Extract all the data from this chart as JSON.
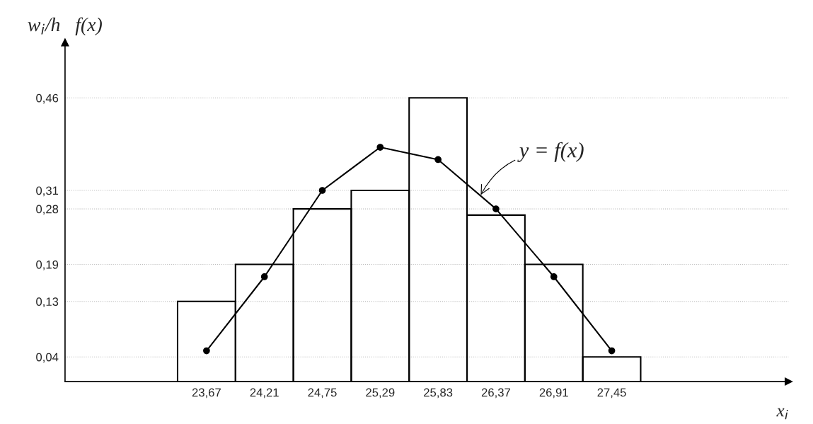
{
  "chart_data": {
    "type": "histogram",
    "ylabel": "w$_{i}$/h   f(x)",
    "xlabel": "x$_{i}$",
    "bins": [
      23.4,
      23.94,
      24.48,
      25.02,
      25.56,
      26.1,
      26.64,
      27.18,
      27.72
    ],
    "values": [
      0.13,
      0.19,
      0.28,
      0.31,
      0.46,
      0.27,
      0.19,
      0.04
    ],
    "color": "#000000",
    "series": [
      {
        "type": "line",
        "x": [
          23.67,
          24.21,
          24.75,
          25.29,
          25.83,
          26.37,
          26.91,
          27.45
        ],
        "values": [
          0.05,
          0.17,
          0.31,
          0.38,
          0.36,
          0.28,
          0.17,
          0.05
        ],
        "color": "#000000"
      }
    ],
    "marker": "circle",
    "line_style": "solid",
    "grid": "y",
    "xlim": [
      22.35,
      29.1
    ],
    "ylim": [
      0,
      0.55
    ],
    "xticks": [
      {
        "value": 23.67,
        "label": "23,67"
      },
      {
        "value": 24.21,
        "label": "24,21"
      },
      {
        "value": 24.75,
        "label": "24,75"
      },
      {
        "value": 25.29,
        "label": "25,29"
      },
      {
        "value": 25.83,
        "label": "25,83"
      },
      {
        "value": 26.37,
        "label": "26,37"
      },
      {
        "value": 26.91,
        "label": "26,91"
      },
      {
        "value": 27.45,
        "label": "27,45"
      }
    ],
    "yticks": [
      {
        "value": 0.04,
        "label": "0,04"
      },
      {
        "value": 0.13,
        "label": "0,13"
      },
      {
        "value": 0.19,
        "label": "0,19"
      },
      {
        "value": 0.28,
        "label": "0,28"
      },
      {
        "value": 0.31,
        "label": "0,31"
      },
      {
        "value": 0.46,
        "label": "0,46"
      }
    ],
    "annotations": [
      {
        "text": "y = f(x)",
        "x": 26.22,
        "y": 0.3
      }
    ]
  }
}
